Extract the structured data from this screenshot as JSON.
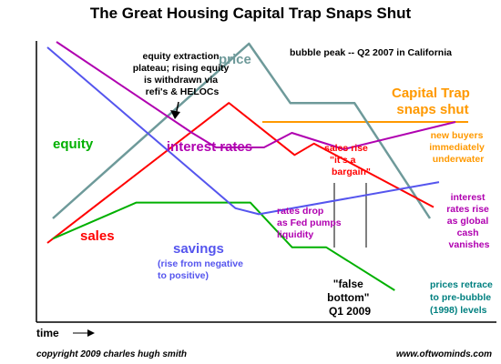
{
  "chart_data": {
    "type": "line",
    "title": "The Great Housing Capital Trap Snaps Shut",
    "xlabel": "time",
    "series": [
      {
        "name": "price",
        "color": "#6e9a9a",
        "points": [
          [
            0,
            0
          ],
          [
            0.52,
            1
          ],
          [
            0.63,
            0.66
          ],
          [
            0.8,
            0.66
          ],
          [
            1,
            0
          ]
        ]
      },
      {
        "name": "sales",
        "color": "#ff0000",
        "points": [
          [
            0,
            0
          ],
          [
            0.47,
            0.86
          ],
          [
            0.64,
            0.54
          ],
          [
            0.69,
            0.61
          ],
          [
            1,
            0.22
          ]
        ]
      },
      {
        "name": "equity",
        "color": "#00b000",
        "points": [
          [
            0,
            0.3
          ],
          [
            0.22,
            0.51
          ],
          [
            0.52,
            0.51
          ],
          [
            0.63,
            0.25
          ],
          [
            0.72,
            0.25
          ],
          [
            0.9,
            0
          ]
        ]
      },
      {
        "name": "interest rates",
        "color": "#b000b0",
        "points": [
          [
            0,
            1
          ],
          [
            0.34,
            0.5
          ],
          [
            0.4,
            0.42
          ],
          [
            0.52,
            0.42
          ],
          [
            0.59,
            0.5
          ],
          [
            0.72,
            0.41
          ],
          [
            1,
            0.56
          ]
        ]
      },
      {
        "name": "savings",
        "color": "#5555ee",
        "points": [
          [
            0,
            1
          ],
          [
            0.48,
            0.2
          ],
          [
            0.54,
            0.17
          ],
          [
            1,
            0.33
          ]
        ]
      }
    ],
    "annotations": [
      {
        "id": "equity_plateau",
        "lines": [
          "equity extraction",
          "plateau; rising equity",
          "is withdrawn via",
          "refi's & HELOCs"
        ]
      },
      {
        "id": "bubble_peak",
        "lines": [
          "bubble peak -- Q2 2007 in California"
        ]
      },
      {
        "id": "capital_trap",
        "lines": [
          "Capital Trap",
          "snaps shut"
        ]
      },
      {
        "id": "new_buyers",
        "lines": [
          "new buyers",
          "immediately",
          "underwater"
        ]
      },
      {
        "id": "sales_rise",
        "lines": [
          "sales rise",
          "\"it's a",
          "bargain\""
        ]
      },
      {
        "id": "interest_rise",
        "lines": [
          "interest",
          "rates rise",
          "as global",
          "cash",
          "vanishes"
        ]
      },
      {
        "id": "rates_drop",
        "lines": [
          "rates drop",
          "as Fed pumps",
          "liquidity"
        ]
      },
      {
        "id": "savings_note",
        "lines": [
          "(rise from negative",
          "to positive)"
        ]
      },
      {
        "id": "false_bottom",
        "lines": [
          "\"false",
          "bottom\"",
          "Q1 2009"
        ]
      },
      {
        "id": "prices_retrace",
        "lines": [
          "prices retrace",
          "to pre-bubble",
          "(1998) levels"
        ]
      }
    ],
    "grid": false,
    "legend": "none"
  },
  "colors": {
    "axis": "#000000",
    "capital_trap_line": "#ff9900",
    "equity_text": "#00b000",
    "rates_text": "#b000b0",
    "sales_text": "#ff0000",
    "price_text": "#6e9a9a",
    "savings_text": "#5555ee",
    "orange_text": "#ff9900",
    "teal_text": "#008080"
  },
  "footer": {
    "copyright": "copyright 2009 charles hugh smith",
    "site": "www.oftwominds.com"
  }
}
